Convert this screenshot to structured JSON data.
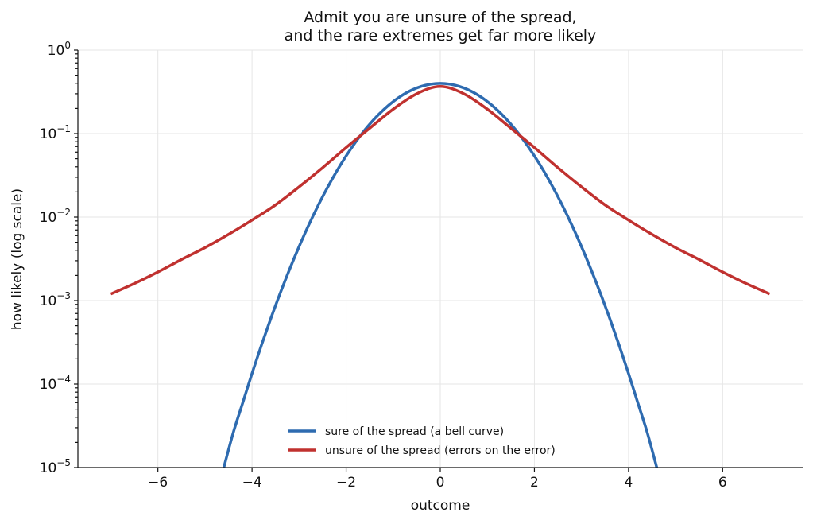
{
  "chart_data": {
    "type": "line",
    "title": [
      "Admit you are unsure of the spread,",
      "and the rare extremes get far more likely"
    ],
    "xlabel": "outcome",
    "ylabel": "how likely (log scale)",
    "xlim": [
      -7.7,
      7.7
    ],
    "ylim": [
      1e-05,
      1
    ],
    "yscale": "log",
    "grid": true,
    "legend_position": "lower center",
    "x_ticks": [
      -6,
      -4,
      -2,
      0,
      2,
      4,
      6
    ],
    "x_tick_labels": [
      "−6",
      "−4",
      "−2",
      "0",
      "2",
      "4",
      "6"
    ],
    "y_ticks": [
      {
        "value": 1e-05,
        "base": "10",
        "exp": "−5"
      },
      {
        "value": 0.0001,
        "base": "10",
        "exp": "−4"
      },
      {
        "value": 0.001,
        "base": "10",
        "exp": "−3"
      },
      {
        "value": 0.01,
        "base": "10",
        "exp": "−2"
      },
      {
        "value": 0.1,
        "base": "10",
        "exp": "−1"
      },
      {
        "value": 1,
        "base": "10",
        "exp": "0"
      }
    ],
    "series": [
      {
        "name": "sure of the spread (a bell curve)",
        "color": "#2e6bb0",
        "x": [
          -4.6,
          -4.4,
          -4.2,
          -4.0,
          -3.8,
          -3.6,
          -3.4,
          -3.2,
          -3.0,
          -2.8,
          -2.6,
          -2.4,
          -2.2,
          -2.0,
          -1.8,
          -1.6,
          -1.4,
          -1.2,
          -1.0,
          -0.8,
          -0.6,
          -0.4,
          -0.2,
          0.0,
          0.2,
          0.4,
          0.6,
          0.8,
          1.0,
          1.2,
          1.4,
          1.6,
          1.8,
          2.0,
          2.2,
          2.4,
          2.6,
          2.8,
          3.0,
          3.2,
          3.4,
          3.6,
          3.8,
          4.0,
          4.2,
          4.4,
          4.6
        ],
        "y": [
          1e-05,
          2.6e-05,
          5.9e-05,
          0.000134,
          0.000292,
          0.000612,
          0.00123,
          0.00238,
          0.00443,
          0.00792,
          0.0136,
          0.0224,
          0.0355,
          0.054,
          0.079,
          0.111,
          0.15,
          0.194,
          0.242,
          0.29,
          0.333,
          0.368,
          0.391,
          0.399,
          0.391,
          0.368,
          0.333,
          0.29,
          0.242,
          0.194,
          0.15,
          0.111,
          0.079,
          0.054,
          0.0355,
          0.0224,
          0.0136,
          0.00792,
          0.00443,
          0.00238,
          0.00123,
          0.000612,
          0.000292,
          0.000134,
          5.9e-05,
          2.6e-05,
          1e-05
        ]
      },
      {
        "name": "unsure of the spread (errors on the error)",
        "color": "#c0312f",
        "x": [
          -7.0,
          -6.5,
          -6.0,
          -5.5,
          -5.0,
          -4.5,
          -4.0,
          -3.5,
          -3.0,
          -2.5,
          -2.0,
          -1.5,
          -1.0,
          -0.5,
          0.0,
          0.5,
          1.0,
          1.5,
          2.0,
          2.5,
          3.0,
          3.5,
          4.0,
          4.5,
          5.0,
          5.5,
          6.0,
          6.5,
          7.0
        ],
        "y": [
          0.0012,
          0.0016,
          0.0022,
          0.0031,
          0.0043,
          0.0062,
          0.0092,
          0.014,
          0.023,
          0.039,
          0.068,
          0.116,
          0.196,
          0.3,
          0.367,
          0.3,
          0.196,
          0.116,
          0.068,
          0.039,
          0.023,
          0.014,
          0.0092,
          0.0062,
          0.0043,
          0.0031,
          0.0022,
          0.0016,
          0.0012
        ]
      }
    ]
  }
}
